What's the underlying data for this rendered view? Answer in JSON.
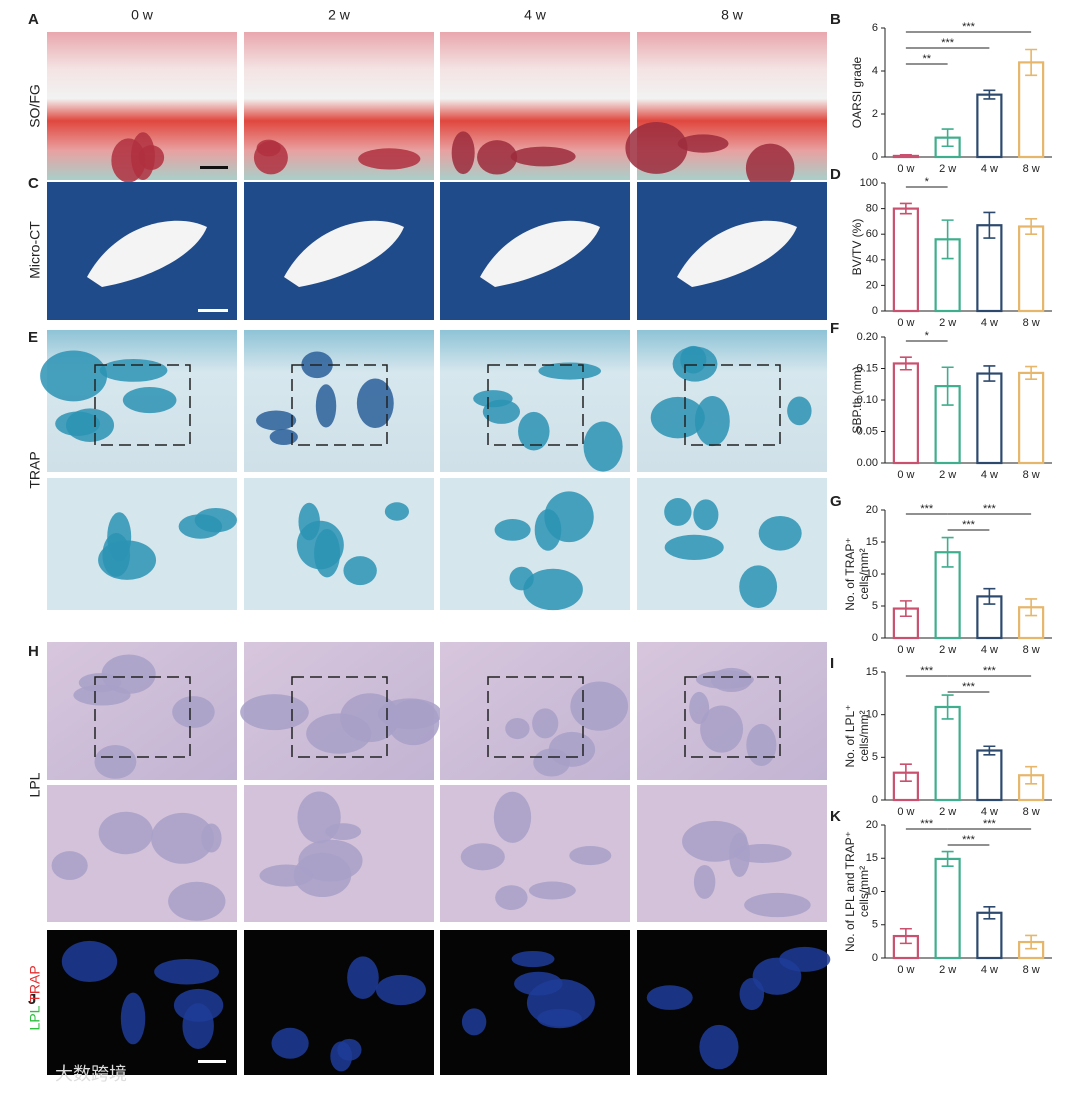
{
  "figure": {
    "columns": [
      "0 w",
      "2 w",
      "4 w",
      "8 w"
    ],
    "rows": [
      {
        "panel": "A",
        "label": "SO/FG"
      },
      {
        "panel": "C",
        "label": "Micro-CT"
      },
      {
        "panel": "E",
        "label": "TRAP"
      },
      {
        "panel": "H",
        "label": "LPL"
      },
      {
        "panel": "J",
        "label": [
          "LPL",
          "TRAP"
        ]
      }
    ],
    "watermark": "大数跨境"
  },
  "chart_data": [
    {
      "type": "bar",
      "panel": "B",
      "ylabel": "OARSI grade",
      "categories": [
        "0 w",
        "2 w",
        "4 w",
        "8 w"
      ],
      "colors": [
        "#c9506f",
        "#3fae8c",
        "#2d4a6e",
        "#e6b66a"
      ],
      "values": [
        0.05,
        0.9,
        2.9,
        4.4
      ],
      "errors": [
        0.05,
        0.4,
        0.2,
        0.6
      ],
      "ylim": [
        0,
        6
      ],
      "yticks": [
        0,
        2,
        4,
        6
      ],
      "annotations": [
        {
          "text": "***",
          "between": [
            0,
            3
          ]
        },
        {
          "text": "***",
          "between": [
            0,
            2
          ]
        },
        {
          "text": "**",
          "between": [
            0,
            1
          ]
        }
      ]
    },
    {
      "type": "bar",
      "panel": "D",
      "ylabel": "BV/TV (%)",
      "categories": [
        "0 w",
        "2 w",
        "4 w",
        "8 w"
      ],
      "colors": [
        "#c9506f",
        "#3fae8c",
        "#2d4a6e",
        "#e6b66a"
      ],
      "values": [
        80,
        56,
        67,
        66
      ],
      "errors": [
        4,
        15,
        10,
        6
      ],
      "ylim": [
        0,
        100
      ],
      "yticks": [
        0,
        20,
        40,
        60,
        80,
        100
      ],
      "annotations": [
        {
          "text": "*",
          "between": [
            0,
            1
          ]
        }
      ]
    },
    {
      "type": "bar",
      "panel": "F",
      "ylabel": "SBP.th (mm)",
      "categories": [
        "0 w",
        "2 w",
        "4 w",
        "8 w"
      ],
      "colors": [
        "#c9506f",
        "#3fae8c",
        "#2d4a6e",
        "#e6b66a"
      ],
      "values": [
        0.158,
        0.122,
        0.142,
        0.143
      ],
      "errors": [
        0.01,
        0.03,
        0.012,
        0.01
      ],
      "ylim": [
        0,
        0.2
      ],
      "yticks": [
        {
          "value": 0,
          "label": "0.00"
        },
        0.05,
        {
          "value": 0.1,
          "label": "0.10"
        },
        0.15,
        {
          "value": 0.2,
          "label": "0.20"
        }
      ],
      "annotations": [
        {
          "text": "*",
          "between": [
            0,
            1
          ]
        }
      ]
    },
    {
      "type": "bar",
      "panel": "G",
      "ylabel": [
        "No. of TRAP⁺",
        "cells/mm²"
      ],
      "categories": [
        "0 w",
        "2 w",
        "4 w",
        "8 w"
      ],
      "colors": [
        "#c9506f",
        "#3fae8c",
        "#2d4a6e",
        "#e6b66a"
      ],
      "values": [
        4.6,
        13.4,
        6.5,
        4.8
      ],
      "errors": [
        1.2,
        2.3,
        1.2,
        1.3
      ],
      "ylim": [
        0,
        20
      ],
      "yticks": [
        0,
        5,
        10,
        15,
        20
      ],
      "annotations": [
        {
          "text": "***",
          "between": [
            1,
            3
          ]
        },
        {
          "text": "***",
          "between": [
            0,
            1
          ]
        },
        {
          "text": "***",
          "between": [
            1,
            2
          ]
        }
      ]
    },
    {
      "type": "bar",
      "panel": "I",
      "ylabel": [
        "No. of LPL⁺",
        "cells/mm²"
      ],
      "categories": [
        "0 w",
        "2 w",
        "4 w",
        "8 w"
      ],
      "colors": [
        "#c9506f",
        "#3fae8c",
        "#2d4a6e",
        "#e6b66a"
      ],
      "values": [
        3.2,
        10.9,
        5.8,
        2.9
      ],
      "errors": [
        1,
        1.4,
        0.5,
        1
      ],
      "ylim": [
        0,
        15
      ],
      "yticks": [
        0,
        5,
        10,
        15
      ],
      "annotations": [
        {
          "text": "***",
          "between": [
            1,
            3
          ]
        },
        {
          "text": "***",
          "between": [
            0,
            1
          ]
        },
        {
          "text": "***",
          "between": [
            1,
            2
          ]
        }
      ]
    },
    {
      "type": "bar",
      "panel": "K",
      "ylabel": [
        "No. of LPL and TRAP⁺",
        "cells/mm²"
      ],
      "categories": [
        "0 w",
        "2 w",
        "4 w",
        "8 w"
      ],
      "colors": [
        "#c9506f",
        "#3fae8c",
        "#2d4a6e",
        "#e6b66a"
      ],
      "values": [
        3.3,
        14.9,
        6.8,
        2.4
      ],
      "errors": [
        1.1,
        1.1,
        0.9,
        1
      ],
      "ylim": [
        0,
        20
      ],
      "yticks": [
        0,
        5,
        10,
        15,
        20
      ],
      "annotations": [
        {
          "text": "***",
          "between": [
            1,
            3
          ]
        },
        {
          "text": "***",
          "between": [
            0,
            1
          ]
        },
        {
          "text": "***",
          "between": [
            1,
            2
          ]
        }
      ]
    }
  ]
}
